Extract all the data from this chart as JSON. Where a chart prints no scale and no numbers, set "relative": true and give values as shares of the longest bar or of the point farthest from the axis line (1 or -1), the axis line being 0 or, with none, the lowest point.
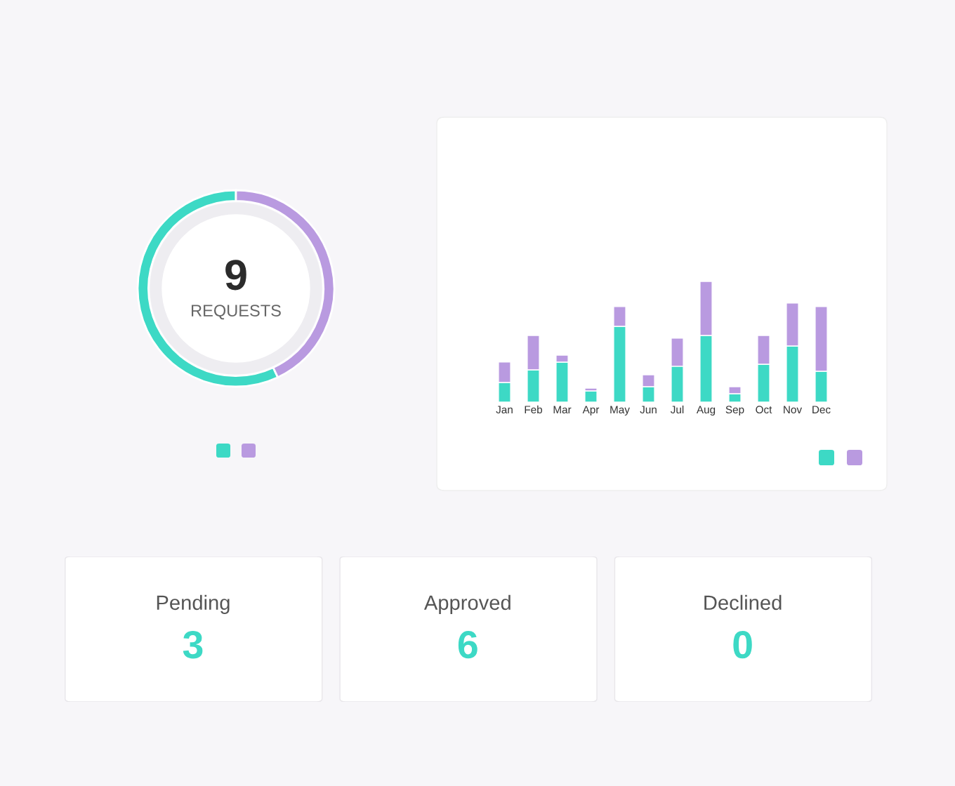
{
  "chart_data": [
    {
      "type": "donut",
      "categories": [
        null,
        null
      ],
      "values": [
        57,
        43
      ],
      "colors": [
        "#3dd9c5",
        "#b99ae0"
      ],
      "annotations": [
        "9",
        "REQUESTS"
      ]
    },
    {
      "type": "bar",
      "stacked": true,
      "relative": true,
      "categories": [
        "Jan",
        "Feb",
        "Mar",
        "Apr",
        "May",
        "Jun",
        "Jul",
        "Aug",
        "Sep",
        "Oct",
        "Nov",
        "Dec"
      ],
      "series": [
        {
          "color": "#3dd9c5",
          "values": [
            0.163,
            0.267,
            0.331,
            0.093,
            0.628,
            0.128,
            0.297,
            0.552,
            0.07,
            0.314,
            0.465,
            0.256
          ]
        },
        {
          "color": "#b99ae0",
          "values": [
            0.169,
            0.285,
            0.058,
            0.023,
            0.163,
            0.099,
            0.233,
            0.448,
            0.058,
            0.238,
            0.355,
            0.535
          ]
        }
      ]
    },
    {
      "type": "other",
      "categories": [
        "Pending",
        "Approved",
        "Declined"
      ],
      "values": [
        3,
        6,
        0
      ],
      "data_labels": true
    }
  ]
}
